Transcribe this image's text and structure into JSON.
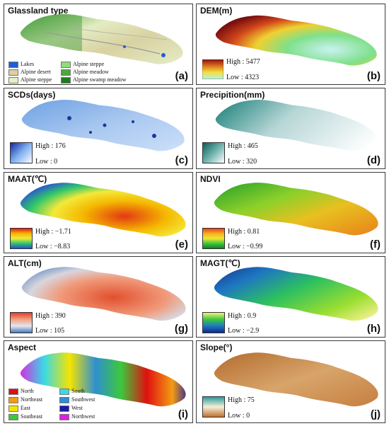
{
  "panels": {
    "a": {
      "title": "Glassland type",
      "label": "(a)",
      "legend": [
        "Lakes",
        "Alpine steppe",
        "Alpine desert",
        "Alpine meadow",
        "Alpine steppe",
        "Alpine swamp meadow"
      ],
      "colors": [
        "#1f5fd6",
        "#8fdc7a",
        "#d8d0a0",
        "#4ca83c",
        "#e8efc8",
        "#1e7a24"
      ]
    },
    "b": {
      "title": "DEM(m)",
      "label": "(b)",
      "high": "High : 5477",
      "low": "Low : 4323"
    },
    "c": {
      "title": "SCDs(days)",
      "label": "(c)",
      "high": "High : 176",
      "low": "Low : 0"
    },
    "d": {
      "title": "Precipition(mm)",
      "label": "(d)",
      "high": "High : 465",
      "low": "Low : 320"
    },
    "e": {
      "title": "MAAT(℃)",
      "label": "(e)",
      "high": "High : −1.71",
      "low": "Low : −8.83"
    },
    "f": {
      "title": "NDVI",
      "label": "(f)",
      "high": "High : 0.81",
      "low": "Low : −0.99"
    },
    "g": {
      "title": "ALT(cm)",
      "label": "(g)",
      "high": "High : 390",
      "low": "Low : 105"
    },
    "h": {
      "title": "MAGT(℃)",
      "label": "(h)",
      "high": "High : 0.9",
      "low": "Low : −2.9"
    },
    "i": {
      "title": "Aspect",
      "label": "(i)",
      "legend": [
        "North",
        "South",
        "Northeast",
        "Southwest",
        "East",
        "West",
        "Southeast",
        "Northwest"
      ],
      "colors": [
        "#e01010",
        "#39d9e6",
        "#f39c12",
        "#2e8fd0",
        "#f5e400",
        "#1a1aa8",
        "#3cc83c",
        "#e020e0"
      ]
    },
    "j": {
      "title": "Slope(°)",
      "label": "(j)",
      "high": "High : 75",
      "low": "Low : 0"
    }
  }
}
